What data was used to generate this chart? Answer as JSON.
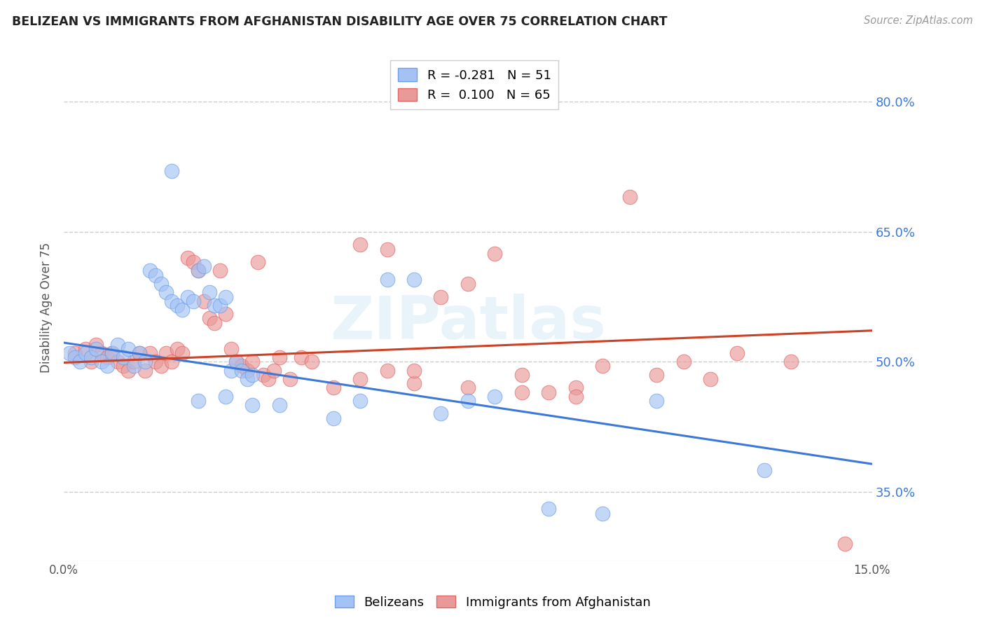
{
  "title": "BELIZEAN VS IMMIGRANTS FROM AFGHANISTAN DISABILITY AGE OVER 75 CORRELATION CHART",
  "source": "Source: ZipAtlas.com",
  "ylabel": "Disability Age Over 75",
  "ytick_values": [
    0.35,
    0.5,
    0.65,
    0.8
  ],
  "xlim": [
    0.0,
    0.15
  ],
  "ylim": [
    0.27,
    0.855
  ],
  "legend_blue_r": "-0.281",
  "legend_blue_n": "51",
  "legend_pink_r": "0.100",
  "legend_pink_n": "65",
  "blue_fill": "#a4c2f4",
  "pink_fill": "#ea9999",
  "blue_edge": "#6d9eeb",
  "pink_edge": "#e06666",
  "blue_line_color": "#3c78d8",
  "pink_line_color": "#cc4125",
  "watermark": "ZIPatlas",
  "blue_line_x": [
    0.0,
    0.15
  ],
  "blue_line_y": [
    0.522,
    0.382
  ],
  "pink_line_x": [
    0.0,
    0.15
  ],
  "pink_line_y": [
    0.499,
    0.536
  ],
  "blue_points_x": [
    0.001,
    0.002,
    0.003,
    0.004,
    0.005,
    0.006,
    0.007,
    0.008,
    0.009,
    0.01,
    0.011,
    0.012,
    0.013,
    0.014,
    0.015,
    0.016,
    0.017,
    0.018,
    0.019,
    0.02,
    0.021,
    0.022,
    0.023,
    0.024,
    0.025,
    0.026,
    0.027,
    0.028,
    0.029,
    0.03,
    0.031,
    0.032,
    0.033,
    0.034,
    0.035,
    0.02,
    0.025,
    0.03,
    0.035,
    0.04,
    0.05,
    0.055,
    0.06,
    0.065,
    0.07,
    0.075,
    0.08,
    0.09,
    0.1,
    0.11,
    0.13
  ],
  "blue_points_y": [
    0.51,
    0.505,
    0.5,
    0.51,
    0.505,
    0.515,
    0.5,
    0.495,
    0.51,
    0.52,
    0.505,
    0.515,
    0.495,
    0.51,
    0.5,
    0.605,
    0.6,
    0.59,
    0.58,
    0.57,
    0.565,
    0.56,
    0.575,
    0.57,
    0.605,
    0.61,
    0.58,
    0.565,
    0.565,
    0.575,
    0.49,
    0.5,
    0.49,
    0.48,
    0.485,
    0.72,
    0.455,
    0.46,
    0.45,
    0.45,
    0.435,
    0.455,
    0.595,
    0.595,
    0.44,
    0.455,
    0.46,
    0.33,
    0.325,
    0.455,
    0.375
  ],
  "pink_points_x": [
    0.002,
    0.004,
    0.005,
    0.006,
    0.007,
    0.008,
    0.009,
    0.01,
    0.011,
    0.012,
    0.013,
    0.014,
    0.015,
    0.016,
    0.017,
    0.018,
    0.019,
    0.02,
    0.021,
    0.022,
    0.023,
    0.024,
    0.025,
    0.026,
    0.027,
    0.028,
    0.029,
    0.03,
    0.031,
    0.032,
    0.033,
    0.034,
    0.035,
    0.036,
    0.037,
    0.038,
    0.039,
    0.04,
    0.042,
    0.044,
    0.046,
    0.05,
    0.055,
    0.06,
    0.065,
    0.07,
    0.075,
    0.08,
    0.085,
    0.09,
    0.095,
    0.1,
    0.11,
    0.12,
    0.055,
    0.06,
    0.065,
    0.075,
    0.085,
    0.095,
    0.105,
    0.115,
    0.125,
    0.135,
    0.145
  ],
  "pink_points_y": [
    0.51,
    0.515,
    0.5,
    0.52,
    0.51,
    0.505,
    0.51,
    0.5,
    0.495,
    0.49,
    0.5,
    0.51,
    0.49,
    0.51,
    0.5,
    0.495,
    0.51,
    0.5,
    0.515,
    0.51,
    0.62,
    0.615,
    0.605,
    0.57,
    0.55,
    0.545,
    0.605,
    0.555,
    0.515,
    0.5,
    0.495,
    0.49,
    0.5,
    0.615,
    0.485,
    0.48,
    0.49,
    0.505,
    0.48,
    0.505,
    0.5,
    0.47,
    0.48,
    0.49,
    0.475,
    0.575,
    0.59,
    0.625,
    0.485,
    0.465,
    0.47,
    0.495,
    0.485,
    0.48,
    0.635,
    0.63,
    0.49,
    0.47,
    0.465,
    0.46,
    0.69,
    0.5,
    0.51,
    0.5,
    0.29
  ]
}
